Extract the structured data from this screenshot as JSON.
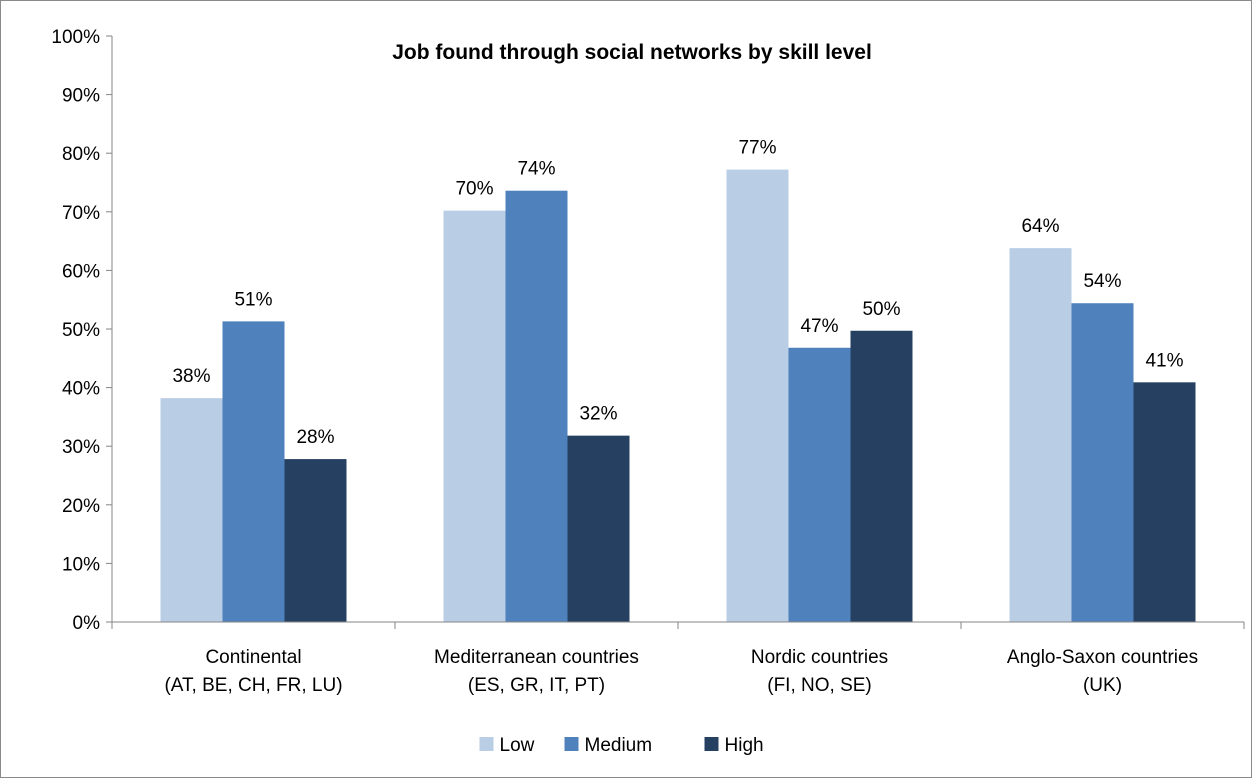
{
  "chart_data": {
    "type": "bar",
    "title": "Job found through social networks by skill level",
    "xlabel": "",
    "ylabel": "",
    "ylim": [
      0,
      100
    ],
    "y_ticks": [
      "0%",
      "10%",
      "20%",
      "30%",
      "40%",
      "50%",
      "60%",
      "70%",
      "80%",
      "90%",
      "100%"
    ],
    "categories": [
      [
        "Continental",
        "(AT, BE, CH, FR, LU)"
      ],
      [
        "Mediterranean countries",
        "(ES, GR, IT, PT)"
      ],
      [
        "Nordic countries",
        "(FI, NO, SE)"
      ],
      [
        "Anglo-Saxon countries",
        "(UK)"
      ]
    ],
    "series": [
      {
        "name": "Low",
        "color": "#b9cde5",
        "values": [
          38.2,
          70.2,
          77.2,
          63.8
        ],
        "labels": [
          "38%",
          "70%",
          "77%",
          "64%"
        ]
      },
      {
        "name": "Medium",
        "color": "#4f81bd",
        "values": [
          51.3,
          73.6,
          46.8,
          54.4
        ],
        "labels": [
          "51%",
          "74%",
          "47%",
          "54%"
        ]
      },
      {
        "name": "High",
        "color": "#254061",
        "values": [
          27.8,
          31.8,
          49.7,
          40.9
        ],
        "labels": [
          "28%",
          "32%",
          "50%",
          "41%"
        ]
      }
    ],
    "grid": false,
    "legend_position": "bottom"
  }
}
